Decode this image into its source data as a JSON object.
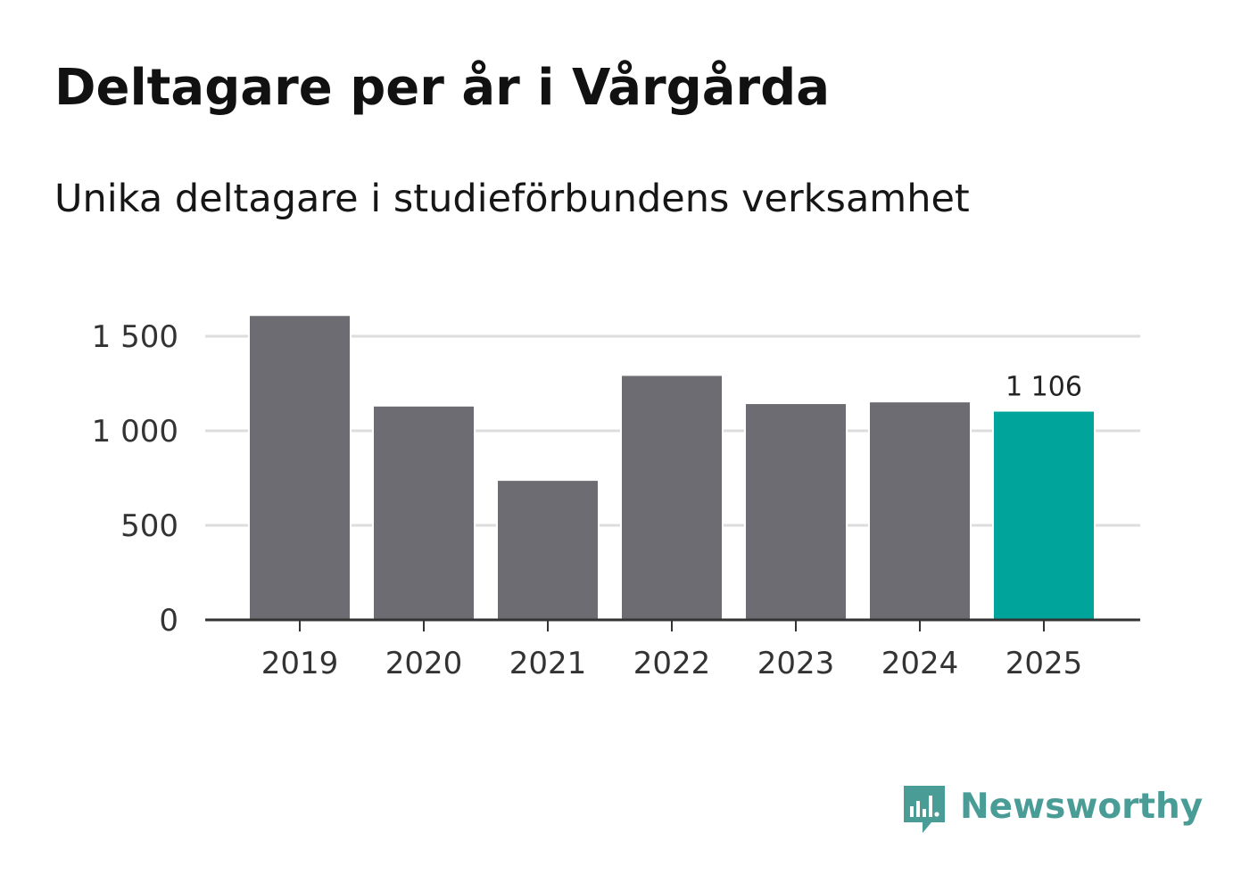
{
  "header": {
    "title": "Deltagare per år i Vårgårda",
    "subtitle": "Unika deltagare i studieförbundens verksamhet"
  },
  "chart_data": {
    "type": "bar",
    "title": "Deltagare per år i Vårgårda",
    "subtitle": "Unika deltagare i studieförbundens verksamhet",
    "categories": [
      "2019",
      "2020",
      "2021",
      "2022",
      "2023",
      "2024",
      "2025"
    ],
    "values": [
      1612,
      1133,
      740,
      1295,
      1146,
      1155,
      1106
    ],
    "highlight_index": 6,
    "highlight_label": "1 106",
    "yticks": [
      0,
      500,
      1000,
      1500
    ],
    "ytick_labels": [
      "0",
      "500",
      "1 000",
      "1 500"
    ],
    "ylim": [
      0,
      1640
    ],
    "xlabel": "",
    "ylabel": "",
    "grid": true,
    "colors": {
      "bar": "#6d6c72",
      "highlight": "#00a49a",
      "grid": "#dddddd",
      "axis": "#333333"
    }
  },
  "branding": {
    "name": "Newsworthy",
    "icon": "newsworthy-logo-icon",
    "color": "#4a9c96"
  }
}
